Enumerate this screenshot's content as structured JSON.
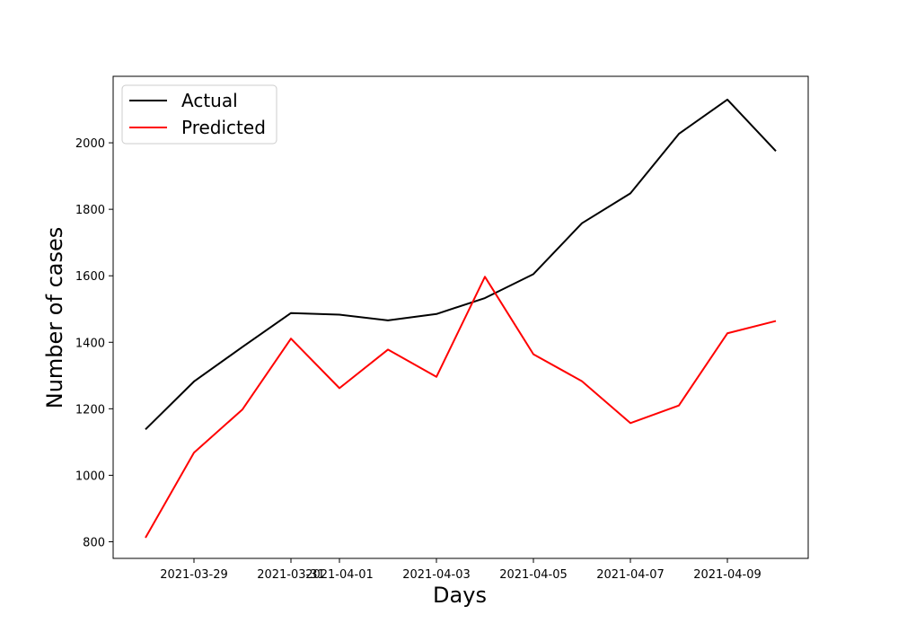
{
  "chart_data": {
    "type": "line",
    "title": "",
    "xlabel": "Days",
    "ylabel": "Number of cases",
    "x": [
      "2021-03-28",
      "2021-03-29",
      "2021-03-30",
      "2021-03-31",
      "2021-04-01",
      "2021-04-02",
      "2021-04-03",
      "2021-04-04",
      "2021-04-05",
      "2021-04-06",
      "2021-04-07",
      "2021-04-08",
      "2021-04-09",
      "2021-04-10"
    ],
    "xlim": [
      "2021-03-27T08:00",
      "2021-04-10T16:00"
    ],
    "ylim": [
      750,
      2200
    ],
    "xticks": [
      "2021-03-29",
      "2021-03-31",
      "2021-04-01",
      "2021-04-03",
      "2021-04-05",
      "2021-04-07",
      "2021-04-09"
    ],
    "yticks": [
      800,
      1000,
      1200,
      1400,
      1600,
      1800,
      2000
    ],
    "grid": false,
    "legend_position": "upper-left",
    "series": [
      {
        "name": "Actual",
        "color": "#000000",
        "values": [
          1138,
          1282,
          1386,
          1488,
          1483,
          1466,
          1485,
          1533,
          1605,
          1758,
          1848,
          2027,
          2130,
          1975
        ]
      },
      {
        "name": "Predicted",
        "color": "#ff0000",
        "values": [
          812,
          1068,
          1198,
          1411,
          1262,
          1378,
          1296,
          1597,
          1364,
          1283,
          1157,
          1210,
          1427,
          1464
        ]
      }
    ]
  }
}
